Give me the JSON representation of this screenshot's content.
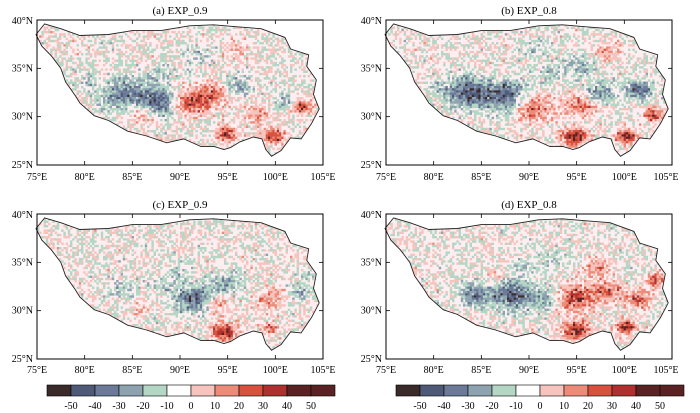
{
  "figure": {
    "panels": [
      {
        "title": "(a) EXP_0.9",
        "pattern": "a"
      },
      {
        "title": "(b) EXP_0.8",
        "pattern": "b"
      },
      {
        "title": "(c) EXP_0.9",
        "pattern": "c"
      },
      {
        "title": "(d) EXP_0.8",
        "pattern": "d"
      }
    ],
    "x_ticks": [
      "75°E",
      "80°E",
      "85°E",
      "90°E",
      "95°E",
      "100°E",
      "105°E"
    ],
    "y_ticks": [
      "25°N",
      "30°N",
      "35°N",
      "40°N"
    ],
    "lon_range": [
      75,
      105
    ],
    "lat_range": [
      25,
      40
    ],
    "colorbar": {
      "ticks": [
        "-50",
        "-40",
        "-30",
        "-20",
        "-10",
        "0",
        "10",
        "20",
        "30",
        "40",
        "50"
      ],
      "colors": [
        "#3a2a2a",
        "#4f5a78",
        "#6b7a99",
        "#8da3b0",
        "#b4d6c4",
        "#ffffff",
        "#f6c4bd",
        "#ec8c78",
        "#d9503c",
        "#b03030",
        "#5a2222"
      ]
    },
    "plateau_outline": [
      [
        75.8,
        39.6
      ],
      [
        77.5,
        39.1
      ],
      [
        79.5,
        38.4
      ],
      [
        82.5,
        38.5
      ],
      [
        85.0,
        38.9
      ],
      [
        88.0,
        38.9
      ],
      [
        91.0,
        39.4
      ],
      [
        93.5,
        39.5
      ],
      [
        96.0,
        39.3
      ],
      [
        98.5,
        39.1
      ],
      [
        101.0,
        38.2
      ],
      [
        101.6,
        37.0
      ],
      [
        103.5,
        36.4
      ],
      [
        103.3,
        35.2
      ],
      [
        104.3,
        33.8
      ],
      [
        104.0,
        32.3
      ],
      [
        104.6,
        30.8
      ],
      [
        103.8,
        29.3
      ],
      [
        102.7,
        27.7
      ],
      [
        101.6,
        27.8
      ],
      [
        100.6,
        26.5
      ],
      [
        99.6,
        25.9
      ],
      [
        99.0,
        26.6
      ],
      [
        98.6,
        27.7
      ],
      [
        97.7,
        27.9
      ],
      [
        96.3,
        27.4
      ],
      [
        95.3,
        26.8
      ],
      [
        94.6,
        26.6
      ],
      [
        93.6,
        26.9
      ],
      [
        92.2,
        26.9
      ],
      [
        90.4,
        27.7
      ],
      [
        88.6,
        27.3
      ],
      [
        86.5,
        28.0
      ],
      [
        84.5,
        28.5
      ],
      [
        82.5,
        29.6
      ],
      [
        81.0,
        30.1
      ],
      [
        79.5,
        31.4
      ],
      [
        79.0,
        32.2
      ],
      [
        78.0,
        33.6
      ],
      [
        77.5,
        35.0
      ],
      [
        76.5,
        36.3
      ],
      [
        75.5,
        37.3
      ],
      [
        74.9,
        38.5
      ]
    ]
  }
}
